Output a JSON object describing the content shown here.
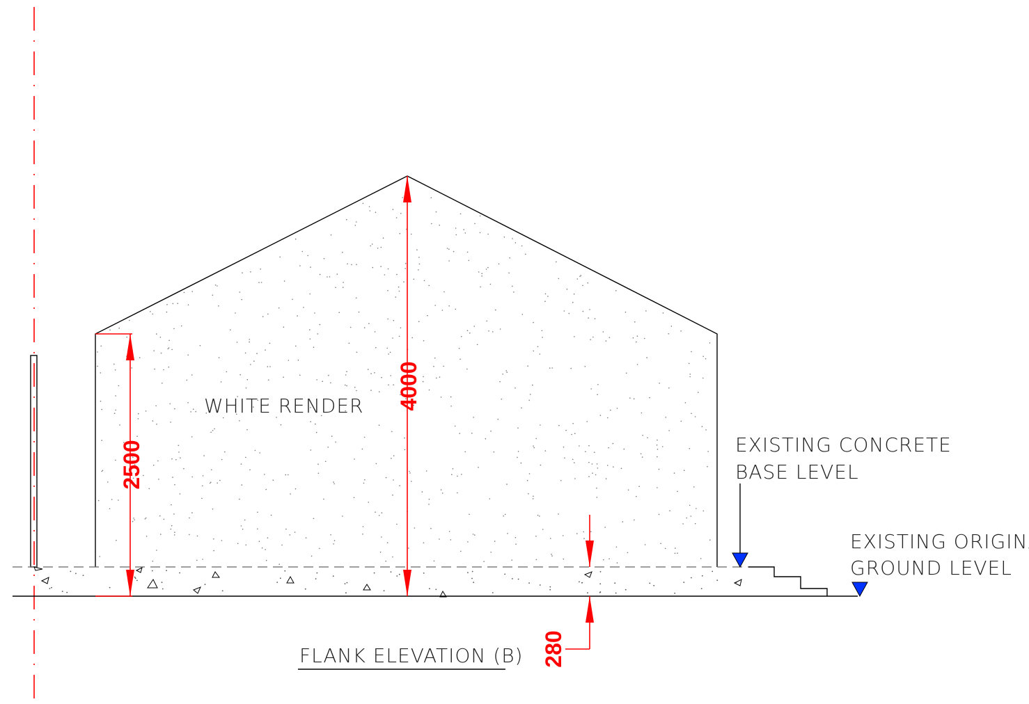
{
  "labels": {
    "wall_finish": "WHITE RENDER",
    "concrete_level_line1": "EXISTING CONCRETE",
    "concrete_level_line2": "BASE LEVEL",
    "ground_level_line1": "EXISTING ORIGINAL",
    "ground_level_line2": "GROUND LEVEL",
    "title": "FLANK ELEVATION (B)"
  },
  "dimensions": {
    "eaves_height": "2500",
    "ridge_height": "4000",
    "base_thickness": "280"
  },
  "colors": {
    "dimension": "#ff0000",
    "level_marker": "#0033ff",
    "outline": "#000000"
  }
}
